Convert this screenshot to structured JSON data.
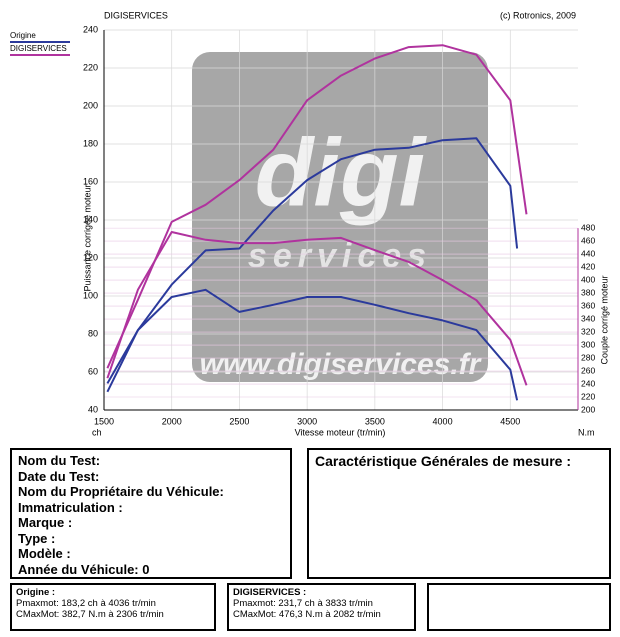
{
  "chart_data": {
    "type": "line",
    "header_left": "DIGISERVICES",
    "header_right": "(c) Rotronics, 2009",
    "ylabel": "Puissance corrigée moteur",
    "y2label": "Couple corrigé moteur",
    "xlabel": "Vitesse moteur (tr/min)",
    "y_unit": "ch",
    "y2_unit": "N.m",
    "watermark": [
      "digi",
      "services",
      "www.digiservices.fr"
    ],
    "xlim": [
      1500,
      5000
    ],
    "xticks": [
      1500,
      2000,
      2500,
      3000,
      3500,
      4000,
      4500
    ],
    "ylim": [
      40,
      240
    ],
    "yticks": [
      40,
      60,
      80,
      100,
      120,
      140,
      160,
      180,
      200,
      220,
      240
    ],
    "y2lim": [
      200,
      785
    ],
    "y2ticks": [
      200,
      220,
      240,
      260,
      280,
      300,
      320,
      340,
      360,
      380,
      400,
      420,
      440,
      460,
      480
    ],
    "grid": true,
    "series": [
      {
        "name": "Origine",
        "color": "#2b3a9c",
        "x": [
          1525,
          1750,
          2000,
          2250,
          2500,
          2750,
          3000,
          3250,
          3500,
          3750,
          4000,
          4250,
          4500,
          4550
        ],
        "values": [
          54,
          82,
          106,
          124,
          125,
          145,
          161,
          172,
          177,
          178,
          182,
          183,
          158,
          125
        ]
      },
      {
        "name": "DIGISERVICES",
        "color": "#b0339e",
        "x": [
          1525,
          1750,
          2000,
          2250,
          2500,
          2750,
          3000,
          3250,
          3500,
          3750,
          4000,
          4250,
          4500,
          4620
        ],
        "values": [
          62,
          98,
          139,
          148,
          161,
          177,
          203,
          216,
          225,
          231,
          232,
          227,
          203,
          143
        ]
      },
      {
        "name": "Origine",
        "color": "#2b3a9c",
        "axis": "y2",
        "x": [
          1525,
          1750,
          2000,
          2250,
          2500,
          2750,
          3000,
          3250,
          3500,
          3750,
          4000,
          4250,
          4500,
          4550
        ],
        "values": [
          228,
          323,
          374,
          385,
          351,
          362,
          374,
          374,
          362,
          349,
          338,
          323,
          262,
          215
        ]
      },
      {
        "name": "DIGISERVICES",
        "color": "#b0339e",
        "axis": "y2",
        "x": [
          1525,
          1750,
          2000,
          2250,
          2500,
          2750,
          3000,
          3250,
          3500,
          3750,
          4000,
          4250,
          4500,
          4620
        ],
        "values": [
          249,
          385,
          474,
          462,
          457,
          457,
          462,
          465,
          446,
          428,
          400,
          369,
          308,
          238
        ]
      }
    ]
  },
  "form": {
    "fields": [
      "Nom du Test:",
      "Date du Test:",
      "Nom du Propriétaire du Véhicule:",
      "Immatriculation  :",
      "Marque  :",
      "Type  :",
      "Modèle  :",
      "Année du Véhicule: 0"
    ],
    "general_title": "Caractéristique Générales de mesure :",
    "origine": {
      "title": "Origine :",
      "lines": [
        "Pmaxmot: 183,2 ch à 4036 tr/min",
        "CMaxMot: 382,7 N.m à 2306 tr/min"
      ]
    },
    "digiservices": {
      "title": "DIGISERVICES :",
      "lines": [
        "Pmaxmot: 231,7 ch à 3833 tr/min",
        "CMaxMot: 476,3 N.m à 2082 tr/min"
      ]
    }
  }
}
